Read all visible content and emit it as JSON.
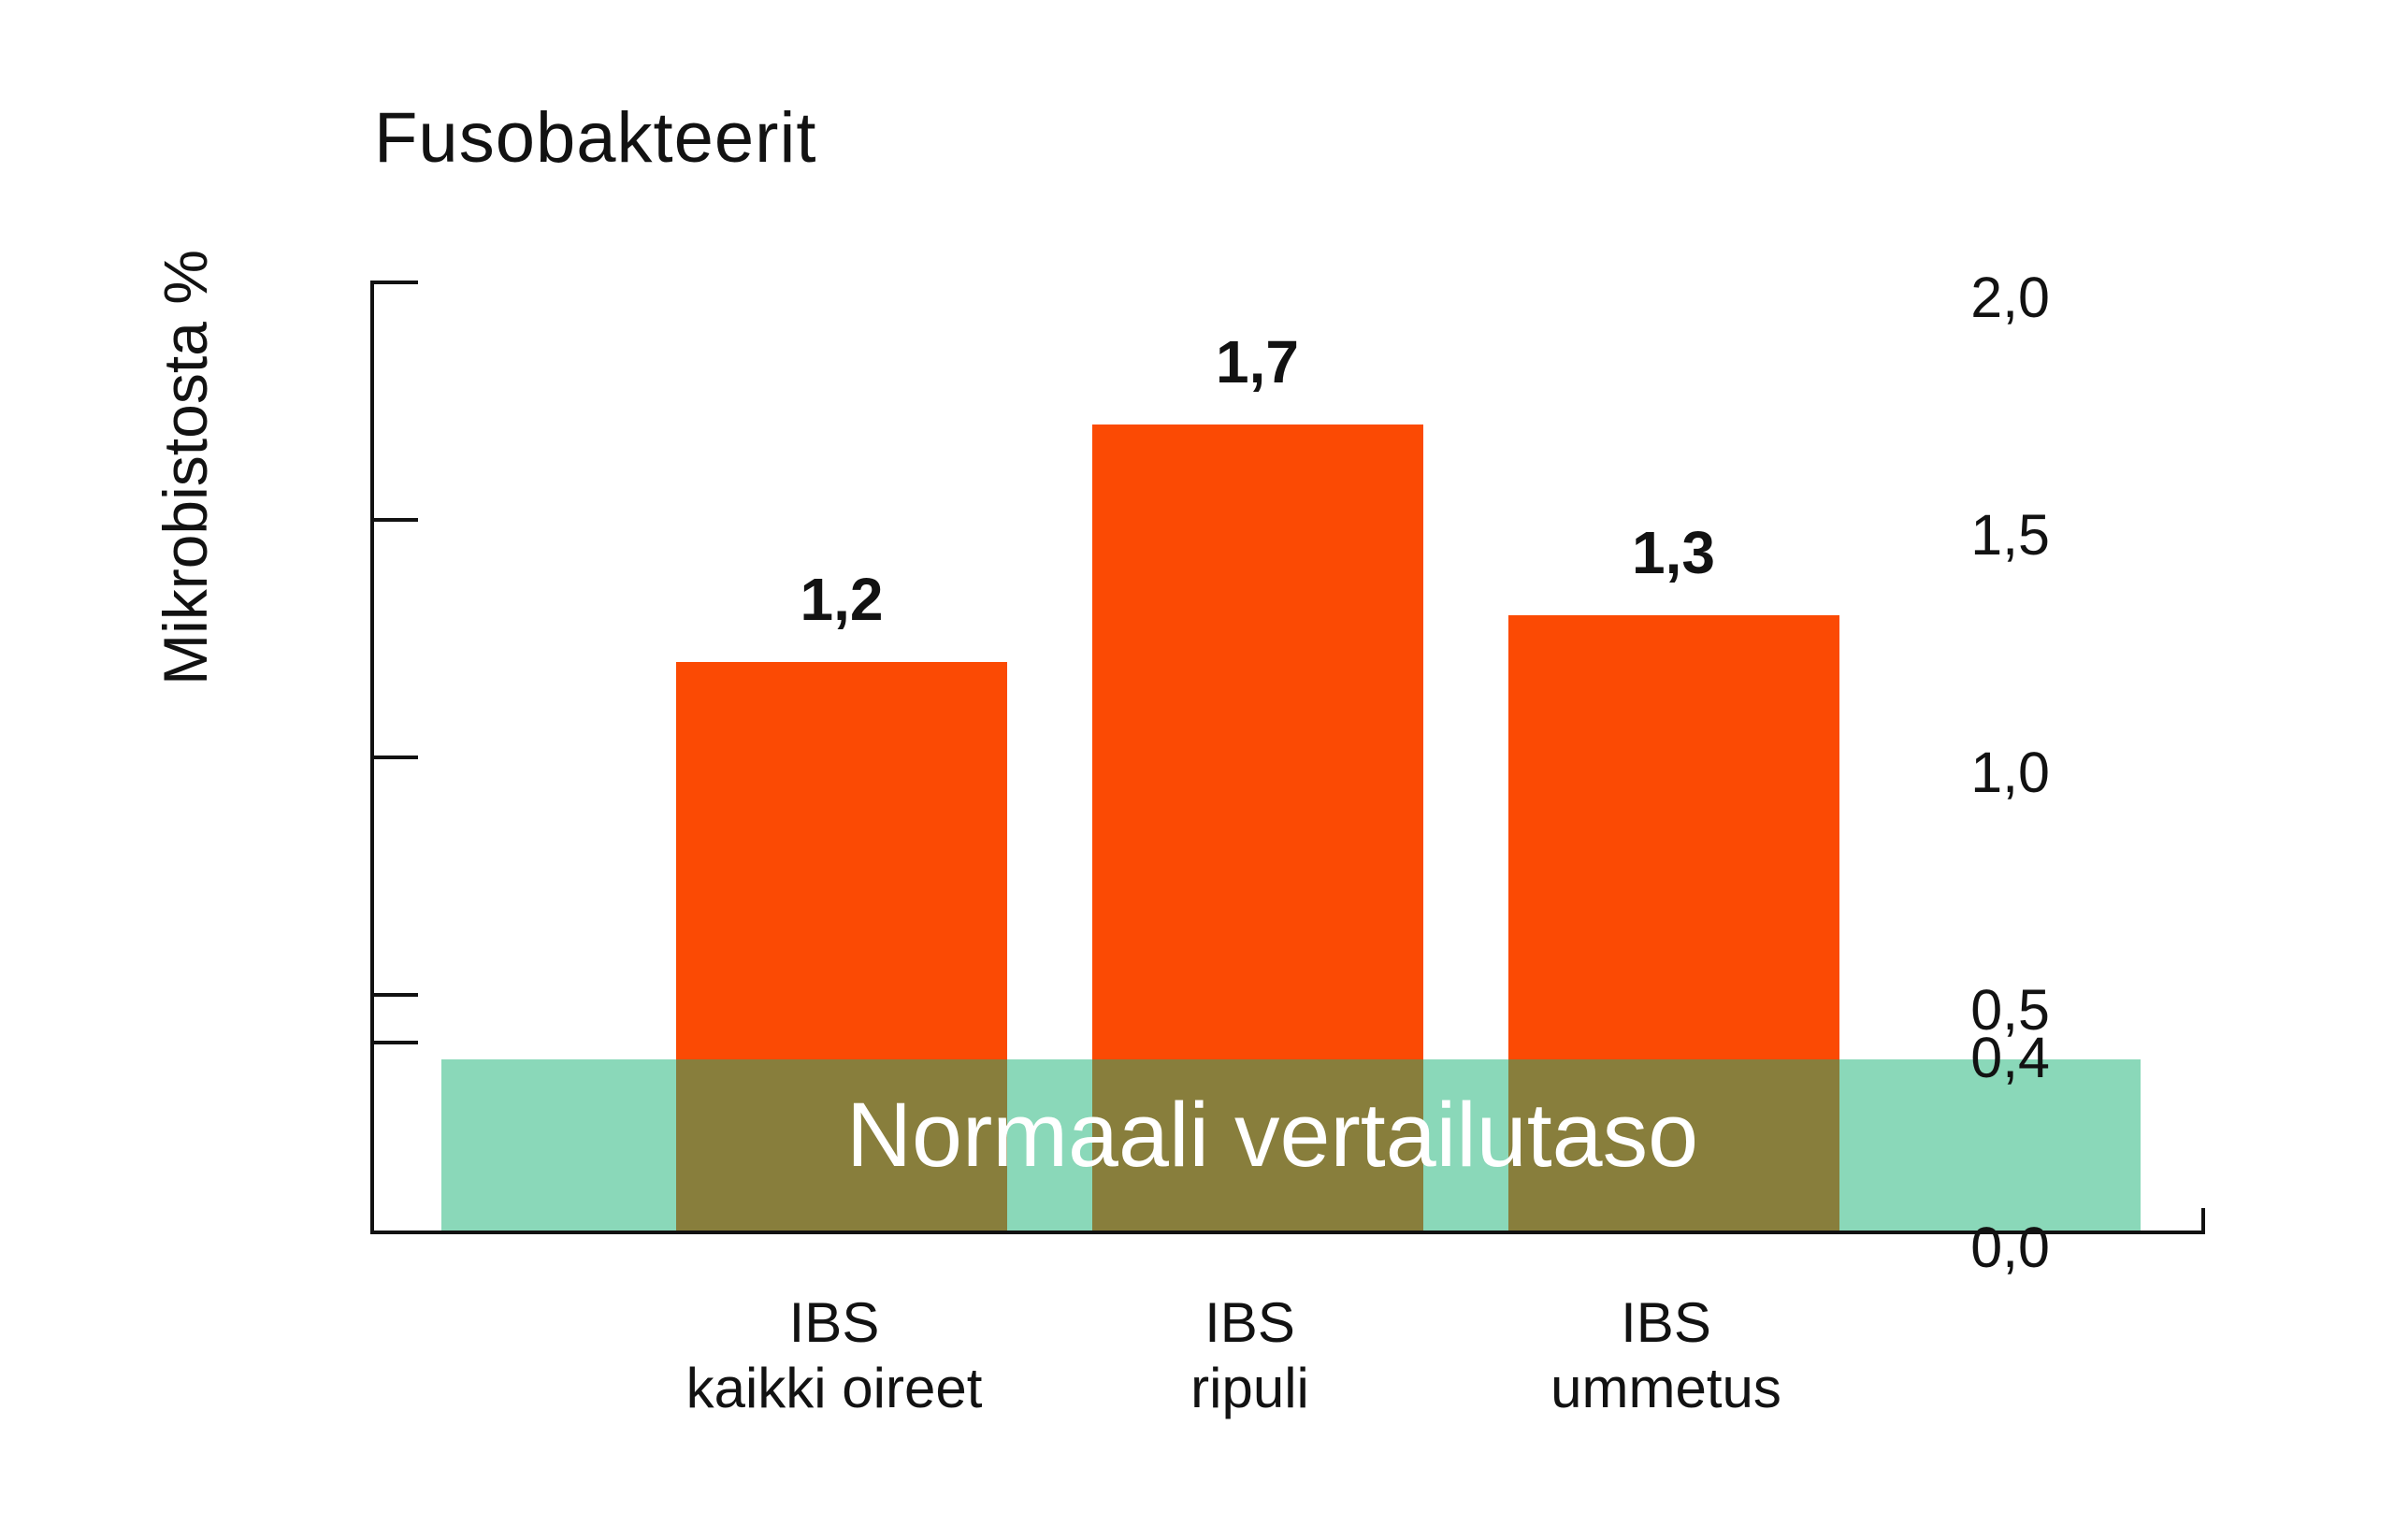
{
  "chart_data": {
    "type": "bar",
    "title": "Fusobakteerit",
    "ylabel": "Mikrobistosta %",
    "xlabel": "",
    "ylim": [
      0.0,
      2.0
    ],
    "grid": false,
    "legend_position": "none",
    "categories": [
      [
        "IBS",
        "kaikki oireet"
      ],
      [
        "IBS",
        "ripuli"
      ],
      [
        "IBS",
        "ummetus"
      ]
    ],
    "values": [
      1.2,
      1.7,
      1.3
    ],
    "value_labels": [
      "1,2",
      "1,7",
      "1,3"
    ],
    "yticks": [
      {
        "label": "2,0",
        "value": 2.0,
        "tick": true
      },
      {
        "label": "1,5",
        "value": 1.5,
        "tick": true
      },
      {
        "label": "1,0",
        "value": 1.0,
        "tick": true
      },
      {
        "label": "0,5",
        "value": 0.5,
        "tick": true
      },
      {
        "label": "0,4",
        "value": 0.4,
        "tick": true
      },
      {
        "label": "0,0",
        "value": 0.0,
        "tick": false
      }
    ],
    "reference_band": {
      "label": "Normaali vertailutaso",
      "from": 0.0,
      "to": 0.4
    },
    "colors": {
      "bar": "#FB4A04",
      "band_fill": "rgba(22,177,116,0.5)",
      "band_mint_over_white": "#8AD8B9",
      "band_olive_over_bar": "#8A7F3C",
      "band_label_text": "#FFFFFF",
      "text_and_axis": "#121212",
      "background": "#FFFFFF"
    }
  }
}
